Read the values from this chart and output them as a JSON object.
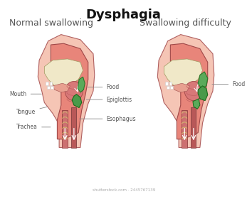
{
  "title": "Dysphagia",
  "subtitle_left": "Normal swallowing",
  "subtitle_right": "Swallowing difficulty",
  "title_fontsize": 13,
  "subtitle_fontsize": 9,
  "label_fontsize": 5.5,
  "bg_color": "#ffffff",
  "skin_outer": "#f5c5b5",
  "skin_inner": "#e8857a",
  "skin_dark": "#c95c5c",
  "mouth_cavity": "#f0e8c8",
  "green_food": "#5aaa5a",
  "green_epiglottis": "#4a9a4a",
  "label_color": "#555555",
  "line_color": "#888888",
  "labels_left": [
    "Mouth",
    "Tongue",
    "Trachea"
  ],
  "labels_right": [
    "Food",
    "Epiglottis",
    "Esophagus"
  ],
  "watermark": "shutterstock.com · 2445767139"
}
